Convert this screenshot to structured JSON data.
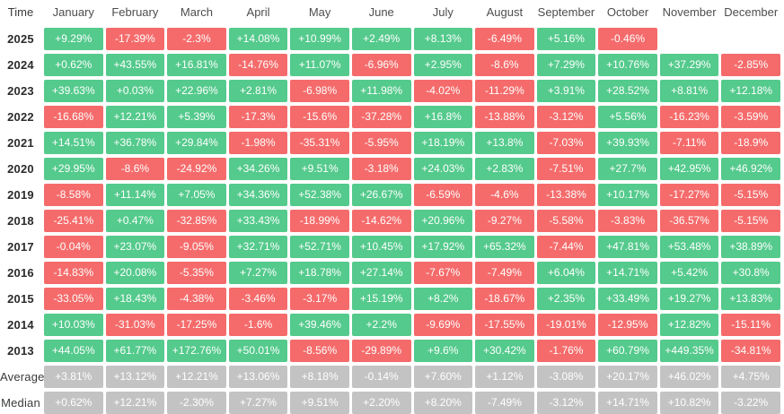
{
  "colors": {
    "positive": "#54ca8c",
    "negative": "#f56b6b",
    "summary": "#c3c3c3",
    "cell_text": "#ffffff",
    "header_text": "#4d4d4d",
    "label_text": "#2b2b2b"
  },
  "chart_data": {
    "type": "heatmap",
    "title": "",
    "corner_label": "Time",
    "columns": [
      "January",
      "February",
      "March",
      "April",
      "May",
      "June",
      "July",
      "August",
      "September",
      "October",
      "November",
      "December"
    ],
    "rows": [
      {
        "label": "2025",
        "kind": "year",
        "values": [
          "+9.29%",
          "-17.39%",
          "-2.3%",
          "+14.08%",
          "+10.99%",
          "+2.49%",
          "+8.13%",
          "-6.49%",
          "+5.16%",
          "-0.46%",
          null,
          null
        ]
      },
      {
        "label": "2024",
        "kind": "year",
        "values": [
          "+0.62%",
          "+43.55%",
          "+16.81%",
          "-14.76%",
          "+11.07%",
          "-6.96%",
          "+2.95%",
          "-8.6%",
          "+7.29%",
          "+10.76%",
          "+37.29%",
          "-2.85%"
        ]
      },
      {
        "label": "2023",
        "kind": "year",
        "values": [
          "+39.63%",
          "+0.03%",
          "+22.96%",
          "+2.81%",
          "-6.98%",
          "+11.98%",
          "-4.02%",
          "-11.29%",
          "+3.91%",
          "+28.52%",
          "+8.81%",
          "+12.18%"
        ]
      },
      {
        "label": "2022",
        "kind": "year",
        "values": [
          "-16.68%",
          "+12.21%",
          "+5.39%",
          "-17.3%",
          "-15.6%",
          "-37.28%",
          "+16.8%",
          "-13.88%",
          "-3.12%",
          "+5.56%",
          "-16.23%",
          "-3.59%"
        ]
      },
      {
        "label": "2021",
        "kind": "year",
        "values": [
          "+14.51%",
          "+36.78%",
          "+29.84%",
          "-1.98%",
          "-35.31%",
          "-5.95%",
          "+18.19%",
          "+13.8%",
          "-7.03%",
          "+39.93%",
          "-7.11%",
          "-18.9%"
        ]
      },
      {
        "label": "2020",
        "kind": "year",
        "values": [
          "+29.95%",
          "-8.6%",
          "-24.92%",
          "+34.26%",
          "+9.51%",
          "-3.18%",
          "+24.03%",
          "+2.83%",
          "-7.51%",
          "+27.7%",
          "+42.95%",
          "+46.92%"
        ]
      },
      {
        "label": "2019",
        "kind": "year",
        "values": [
          "-8.58%",
          "+11.14%",
          "+7.05%",
          "+34.36%",
          "+52.38%",
          "+26.67%",
          "-6.59%",
          "-4.6%",
          "-13.38%",
          "+10.17%",
          "-17.27%",
          "-5.15%"
        ]
      },
      {
        "label": "2018",
        "kind": "year",
        "values": [
          "-25.41%",
          "+0.47%",
          "-32.85%",
          "+33.43%",
          "-18.99%",
          "-14.62%",
          "+20.96%",
          "-9.27%",
          "-5.58%",
          "-3.83%",
          "-36.57%",
          "-5.15%"
        ]
      },
      {
        "label": "2017",
        "kind": "year",
        "values": [
          "-0.04%",
          "+23.07%",
          "-9.05%",
          "+32.71%",
          "+52.71%",
          "+10.45%",
          "+17.92%",
          "+65.32%",
          "-7.44%",
          "+47.81%",
          "+53.48%",
          "+38.89%"
        ]
      },
      {
        "label": "2016",
        "kind": "year",
        "values": [
          "-14.83%",
          "+20.08%",
          "-5.35%",
          "+7.27%",
          "+18.78%",
          "+27.14%",
          "-7.67%",
          "-7.49%",
          "+6.04%",
          "+14.71%",
          "+5.42%",
          "+30.8%"
        ]
      },
      {
        "label": "2015",
        "kind": "year",
        "values": [
          "-33.05%",
          "+18.43%",
          "-4.38%",
          "-3.46%",
          "-3.17%",
          "+15.19%",
          "+8.2%",
          "-18.67%",
          "+2.35%",
          "+33.49%",
          "+19.27%",
          "+13.83%"
        ]
      },
      {
        "label": "2014",
        "kind": "year",
        "values": [
          "+10.03%",
          "-31.03%",
          "-17.25%",
          "-1.6%",
          "+39.46%",
          "+2.2%",
          "-9.69%",
          "-17.55%",
          "-19.01%",
          "-12.95%",
          "+12.82%",
          "-15.11%"
        ]
      },
      {
        "label": "2013",
        "kind": "year",
        "values": [
          "+44.05%",
          "+61.77%",
          "+172.76%",
          "+50.01%",
          "-8.56%",
          "-29.89%",
          "+9.6%",
          "+30.42%",
          "-1.76%",
          "+60.79%",
          "+449.35%",
          "-34.81%"
        ]
      },
      {
        "label": "Average",
        "kind": "summary",
        "values": [
          "+3.81%",
          "+13.12%",
          "+12.21%",
          "+13.06%",
          "+8.18%",
          "-0.14%",
          "+7.60%",
          "+1.12%",
          "-3.08%",
          "+20.17%",
          "+46.02%",
          "+4.75%"
        ]
      },
      {
        "label": "Median",
        "kind": "summary",
        "values": [
          "+0.62%",
          "+12.21%",
          "-2.30%",
          "+7.27%",
          "+9.51%",
          "+2.20%",
          "+8.20%",
          "-7.49%",
          "-3.12%",
          "+14.71%",
          "+10.82%",
          "-3.22%"
        ]
      }
    ]
  }
}
